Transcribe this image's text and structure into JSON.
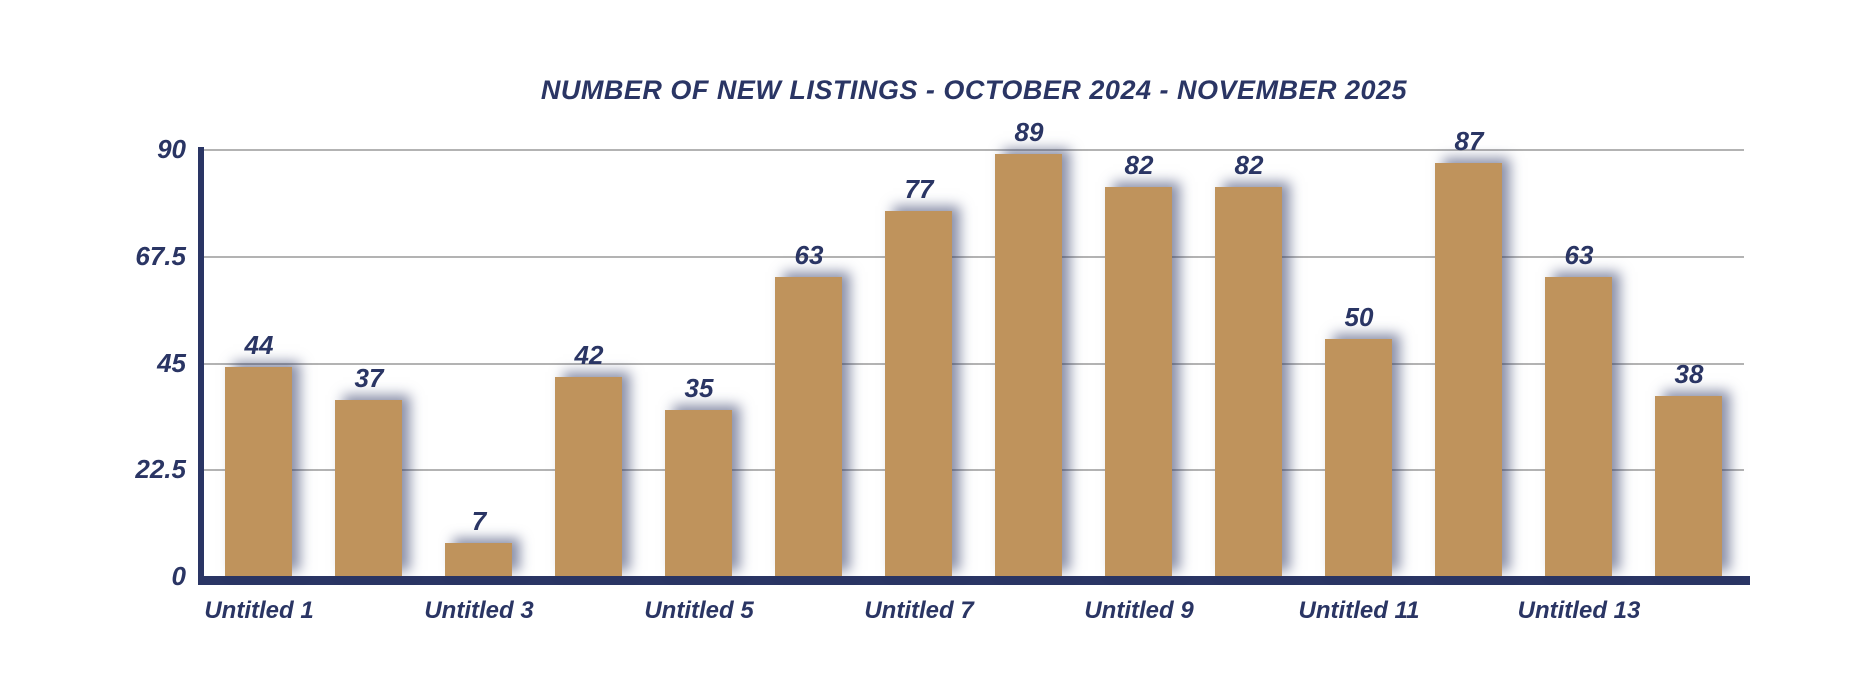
{
  "chart_data": {
    "type": "bar",
    "title": "NUMBER OF NEW LISTINGS - OCTOBER 2024 - NOVEMBER 2025",
    "values": [
      44,
      37,
      7,
      42,
      35,
      63,
      77,
      89,
      82,
      82,
      50,
      87,
      63,
      38
    ],
    "data_labels": [
      "44",
      "37",
      "7",
      "42",
      "35",
      "63",
      "77",
      "89",
      "82",
      "82",
      "50",
      "87",
      "63",
      "38"
    ],
    "x_tick_labels": [
      "Untitled 1",
      "Untitled 3",
      "Untitled 5",
      "Untitled 7",
      "Untitled 9",
      "Untitled 11",
      "Untitled 13"
    ],
    "x_tick_bar_positions": [
      0,
      2,
      4,
      6,
      8,
      10,
      12
    ],
    "y_ticks": [
      90,
      67.5,
      45,
      22.5,
      0
    ],
    "y_tick_labels": [
      "90",
      "67.5",
      "45",
      "22.5",
      "0"
    ],
    "ylim": [
      0,
      90
    ],
    "grid": true,
    "legend": "none",
    "colors": {
      "text_navy": "#2A3564",
      "bar_fill": "#BF935C",
      "gridline": "#B3B3B3",
      "bar_shadow": "rgba(42,53,98,0.55)",
      "background": "#FFFFFF"
    }
  }
}
